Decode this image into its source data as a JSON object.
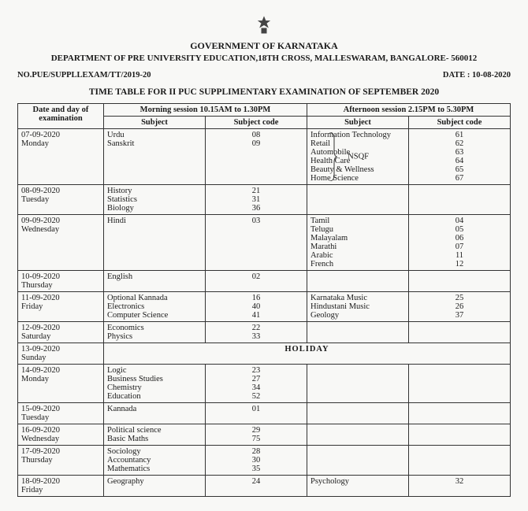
{
  "header": {
    "gov": "GOVERNMENT OF KARNATAKA",
    "dept": "DEPARTMENT OF PRE UNIVERSITY EDUCATION,18TH CROSS, MALLESWARAM, BANGALORE- 560012",
    "ref": "NO.PUE/SUPPLLEXAM/TT/2019-20",
    "date_label": "DATE : 10-08-2020",
    "title": "TIME TABLE FOR II PUC SUPPLIMENTARY EXAMINATION OF  SEPTEMBER 2020"
  },
  "columns": {
    "date": "Date and day of examination",
    "morning_session": "Morning session 10.15AM to 1.30PM",
    "afternoon_session": "Afternoon session 2.15PM to 5.30PM",
    "subject": "Subject",
    "code": "Subject code"
  },
  "rows": [
    {
      "date": "07-09-2020\nMonday",
      "morning": [
        [
          "Urdu",
          "08"
        ],
        [
          "Sanskrit",
          "09"
        ]
      ],
      "afternoon": [
        [
          "Information Technology",
          "61"
        ],
        [
          "Retail",
          "62"
        ],
        [
          "Automobile",
          "63"
        ],
        [
          "Health Care",
          "64"
        ],
        [
          "Beauty & Wellness",
          "65"
        ],
        [
          "Home Science",
          "67"
        ]
      ],
      "nsqf": "NSQF"
    },
    {
      "date": "08-09-2020\nTuesday",
      "morning": [
        [
          "History",
          "21"
        ],
        [
          "Statistics",
          "31"
        ],
        [
          "Biology",
          "36"
        ]
      ],
      "afternoon": []
    },
    {
      "date": "09-09-2020\nWednesday",
      "morning": [
        [
          "Hindi",
          "03"
        ]
      ],
      "afternoon": [
        [
          "Tamil",
          "04"
        ],
        [
          "Telugu",
          "05"
        ],
        [
          "Malayalam",
          "06"
        ],
        [
          "Marathi",
          "07"
        ],
        [
          "Arabic",
          "11"
        ],
        [
          "French",
          "12"
        ]
      ]
    },
    {
      "date": "10-09-2020\nThursday",
      "morning": [
        [
          "English",
          "02"
        ]
      ],
      "afternoon": []
    },
    {
      "date": "11-09-2020\nFriday",
      "morning": [
        [
          "Optional Kannada",
          "16"
        ],
        [
          "Electronics",
          "40"
        ],
        [
          "Computer Science",
          "41"
        ]
      ],
      "afternoon": [
        [
          "Karnataka Music",
          "25"
        ],
        [
          "Hindustani Music",
          "26"
        ],
        [
          "Geology",
          "37"
        ]
      ]
    },
    {
      "date": "12-09-2020\nSaturday",
      "morning": [
        [
          "Economics",
          "22"
        ],
        [
          "Physics",
          "33"
        ]
      ],
      "afternoon": []
    },
    {
      "date": "13-09-2020\nSunday",
      "holiday": "HOLIDAY"
    },
    {
      "date": "14-09-2020\nMonday",
      "morning": [
        [
          "Logic",
          "23"
        ],
        [
          "Business Studies",
          "27"
        ],
        [
          "Chemistry",
          "34"
        ],
        [
          "Education",
          "52"
        ]
      ],
      "afternoon": []
    },
    {
      "date": "15-09-2020\nTuesday",
      "morning": [
        [
          "Kannada",
          "01"
        ]
      ],
      "afternoon": []
    },
    {
      "date": "16-09-2020\nWednesday",
      "morning": [
        [
          "Political science",
          "29"
        ],
        [
          "Basic Maths",
          "75"
        ]
      ],
      "afternoon": []
    },
    {
      "date": "17-09-2020\nThursday",
      "morning": [
        [
          "Sociology",
          "28"
        ],
        [
          "Accountancy",
          "30"
        ],
        [
          "Mathematics",
          "35"
        ]
      ],
      "afternoon": []
    },
    {
      "date": "18-09-2020\nFriday",
      "morning": [
        [
          "Geography",
          "24"
        ]
      ],
      "afternoon": [
        [
          "Psychology",
          "32"
        ]
      ]
    }
  ]
}
